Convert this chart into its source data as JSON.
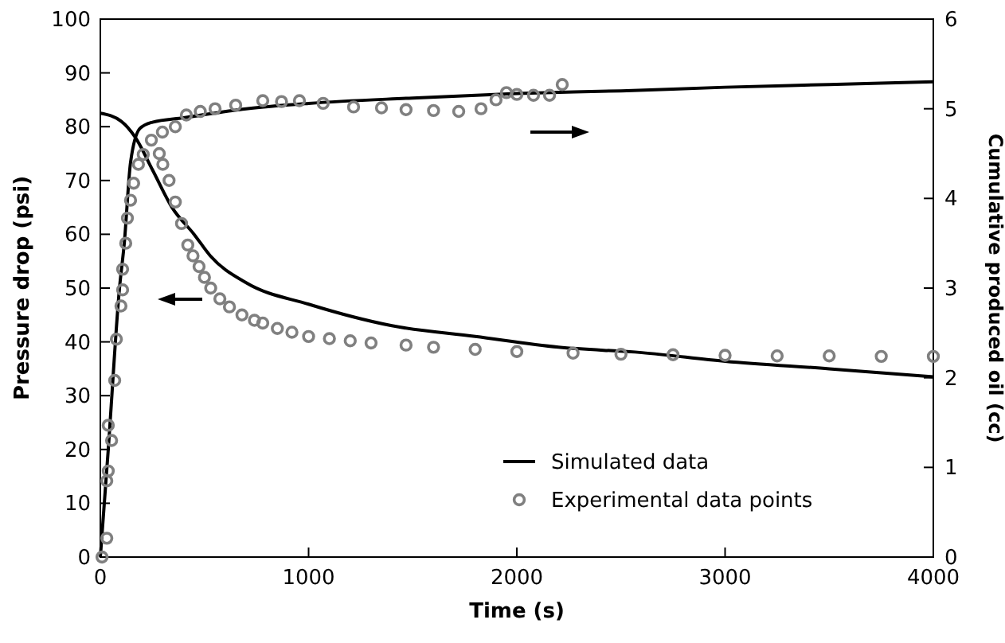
{
  "chart_data": {
    "type": "line",
    "xlabel": "Time (s)",
    "ylabel": "Pressure drop (psi)",
    "y2label": "Cumulative produced oil (cc)",
    "xlim": [
      0,
      4000
    ],
    "xticks": [
      0,
      1000,
      2000,
      3000,
      4000
    ],
    "ylim": [
      0,
      100
    ],
    "yticks": [
      0,
      10,
      20,
      30,
      40,
      50,
      60,
      70,
      80,
      90,
      100
    ],
    "y2lim": [
      0,
      6
    ],
    "y2ticks": [
      0,
      1,
      2,
      3,
      4,
      5,
      6
    ],
    "legend": "bottom right",
    "grid": false,
    "series": [
      {
        "name": "Simulated data",
        "color": "#000000",
        "marker": "none",
        "x": [
          0,
          100,
          168,
          250,
          344,
          450,
          528,
          700,
          1000,
          1400,
          1800,
          2200,
          2600,
          3000,
          3500,
          4000
        ],
        "values": [
          82.5,
          81,
          78,
          72,
          65,
          60,
          56,
          51,
          47,
          43,
          41,
          39,
          38,
          36.4,
          35,
          33.5
        ]
      },
      {
        "name": "Experimental data points",
        "type": "scatter",
        "color": "#808080",
        "marker": "circle",
        "x": [
          283,
          300,
          330,
          360,
          390,
          420,
          445,
          474,
          500,
          530,
          574,
          620,
          680,
          740,
          780,
          850,
          920,
          1000,
          1100,
          1200,
          1300,
          1468,
          1600,
          1800,
          2000,
          2270,
          2500,
          2750,
          3000,
          3250,
          3500,
          3750,
          4000
        ],
        "values": [
          75,
          73,
          70,
          66,
          62,
          58,
          56,
          54,
          52,
          50,
          48,
          46.5,
          45,
          44,
          43.5,
          42.5,
          41.8,
          41,
          40.6,
          40.2,
          39.8,
          39.4,
          39,
          38.6,
          38.2,
          37.9,
          37.7,
          37.6,
          37.5,
          37.4,
          37.4,
          37.3,
          37.3
        ]
      },
      {
        "axis": "y2",
        "color": "#000000",
        "marker": "none",
        "x": [
          0,
          38,
          92,
          115,
          145,
          190,
          250,
          400,
          700,
          1000,
          1500,
          2000,
          2500,
          3000,
          3500,
          4000
        ],
        "values": [
          0,
          1.2,
          3,
          3.5,
          4.4,
          4.78,
          4.85,
          4.9,
          5,
          5.06,
          5.12,
          5.17,
          5.2,
          5.24,
          5.27,
          5.3
        ]
      },
      {
        "type": "scatter",
        "axis": "y2",
        "color": "#808080",
        "marker": "circle",
        "x": [
          8,
          31,
          31,
          38,
          38,
          54,
          69,
          77,
          99,
          107,
          107,
          122,
          130,
          145,
          160,
          183,
          206,
          245,
          298,
          360,
          413,
          480,
          551,
          650,
          780,
          870,
          956,
          1070,
          1216,
          1350,
          1468,
          1600,
          1721,
          1828,
          1900,
          1950,
          2000,
          2080,
          2157,
          2218
        ],
        "values": [
          0,
          0.21,
          0.85,
          0.96,
          1.47,
          1.3,
          1.97,
          2.43,
          2.8,
          2.98,
          3.21,
          3.5,
          3.78,
          3.98,
          4.17,
          4.38,
          4.49,
          4.65,
          4.74,
          4.8,
          4.93,
          4.97,
          5,
          5.04,
          5.09,
          5.08,
          5.09,
          5.06,
          5.02,
          5.01,
          4.99,
          4.98,
          4.97,
          5,
          5.1,
          5.18,
          5.16,
          5.15,
          5.15,
          5.27
        ]
      }
    ]
  }
}
